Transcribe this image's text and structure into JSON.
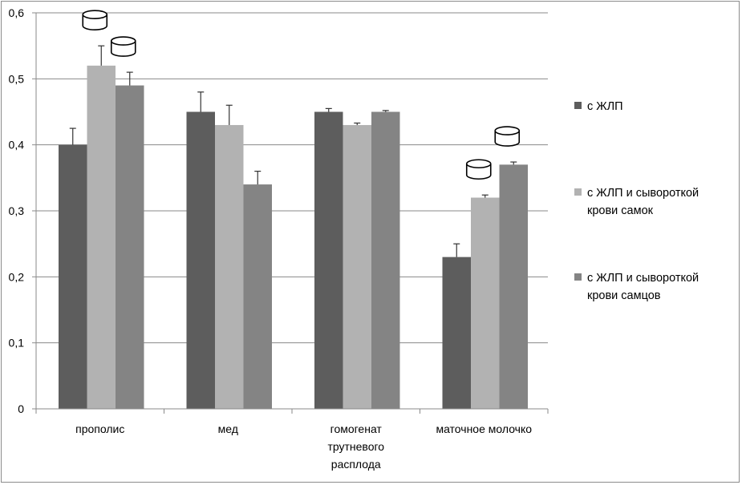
{
  "chart_data": {
    "type": "bar",
    "categories": [
      [
        "прополис"
      ],
      [
        "мед"
      ],
      [
        "гомогенат",
        "трутневого",
        "расплода"
      ],
      [
        "маточное молочко"
      ]
    ],
    "series": [
      {
        "name": [
          "с ЖЛП"
        ],
        "color": "#5d5d5d",
        "values": [
          0.4,
          0.45,
          0.45,
          0.23
        ],
        "errors": [
          0.025,
          0.03,
          0.005,
          0.02
        ]
      },
      {
        "name": [
          "с ЖЛП и сывороткой",
          "крови самок"
        ],
        "color": "#b2b2b2",
        "values": [
          0.52,
          0.43,
          0.43,
          0.32
        ],
        "errors": [
          0.03,
          0.03,
          0.003,
          0.004
        ]
      },
      {
        "name": [
          "с ЖЛП и сывороткой",
          "крови самцов"
        ],
        "color": "#848484",
        "values": [
          0.49,
          0.34,
          0.45,
          0.37
        ],
        "errors": [
          0.02,
          0.02,
          0.002,
          0.004
        ]
      }
    ],
    "ylim": [
      0,
      0.6
    ],
    "yticks": [
      "0",
      "0,1",
      "0,2",
      "0,3",
      "0,4",
      "0,5",
      "0,6"
    ],
    "grid": true,
    "legend": "right",
    "significance_markers": [
      {
        "category": 0,
        "series": 1,
        "icon": "cylinder-icon"
      },
      {
        "category": 0,
        "series": 2,
        "icon": "cylinder-icon"
      },
      {
        "category": 3,
        "series": 1,
        "icon": "cylinder-icon"
      },
      {
        "category": 3,
        "series": 2,
        "icon": "cylinder-icon"
      }
    ]
  }
}
